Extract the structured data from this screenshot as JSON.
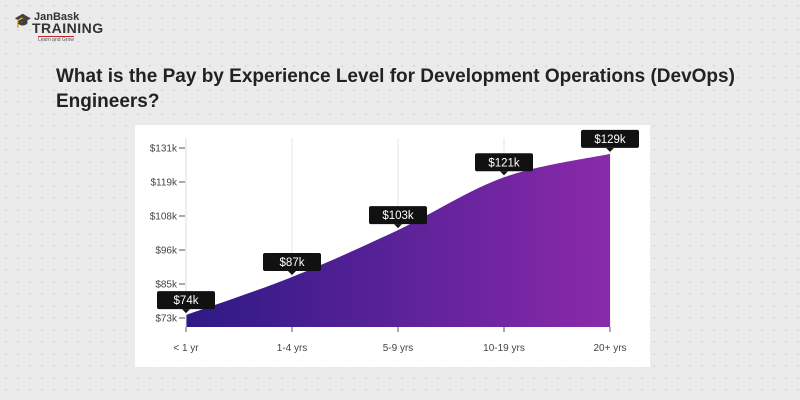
{
  "logo": {
    "brand": "JanBask",
    "name": "TRAINING",
    "tagline": "Learn and Grow"
  },
  "title": "What is the Pay by Experience Level for Development Operations (DevOps) Engineers?",
  "chart_data": {
    "type": "area",
    "title": "",
    "categories": [
      "< 1 yr",
      "1-4 yrs",
      "5-9 yrs",
      "10-19 yrs",
      "20+ yrs"
    ],
    "values": [
      74,
      87,
      103,
      121,
      129
    ],
    "data_labels": [
      "$74k",
      "$87k",
      "$103k",
      "$121k",
      "$129k"
    ],
    "y_ticks": [
      "$73k",
      "$85k",
      "$96k",
      "$108k",
      "$119k",
      "$131k"
    ],
    "y_tick_values": [
      73,
      85,
      96,
      108,
      119,
      131
    ],
    "ylim": [
      73,
      131
    ],
    "xlabel": "",
    "ylabel": "",
    "grid": "vertical",
    "gradient": [
      "#2d1a85",
      "#8a2aab"
    ]
  }
}
